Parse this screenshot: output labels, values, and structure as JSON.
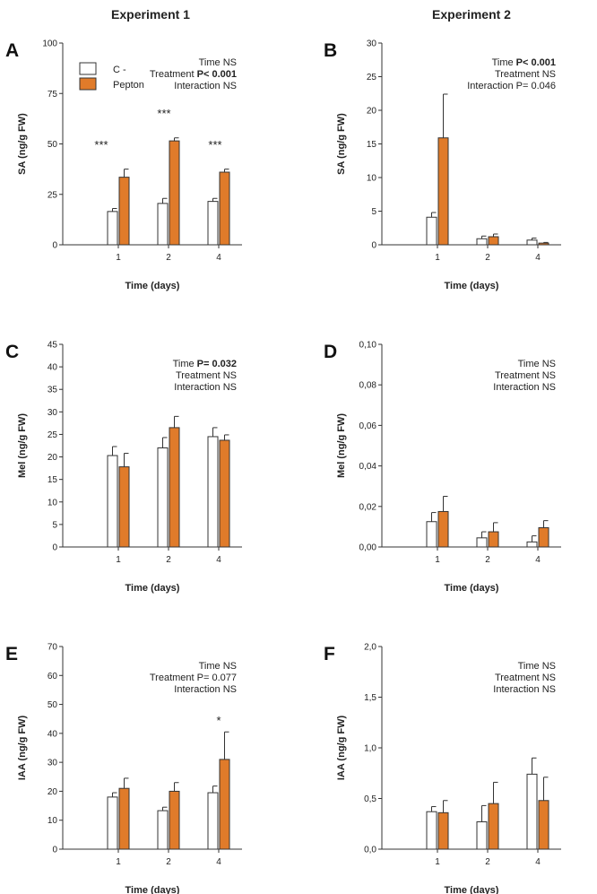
{
  "figure": {
    "column_titles": [
      "Experiment 1",
      "Experiment 2"
    ],
    "legend": [
      {
        "label": "C -",
        "color": "#ffffff"
      },
      {
        "label": "Pepton",
        "color": "#e07b2a"
      }
    ],
    "colors": {
      "control": "#ffffff",
      "pepton": "#e07b2a",
      "stroke": "#333333"
    }
  },
  "chart_data": [
    {
      "panel": "A",
      "type": "bar",
      "experiment": "Experiment 1",
      "title": "",
      "xlabel": "Time (days)",
      "ylabel": "SA (ng/g FW)",
      "categories": [
        "1",
        "2",
        "4"
      ],
      "ylim": [
        0,
        100
      ],
      "yticks": [
        "0",
        "25",
        "50",
        "75",
        "100"
      ],
      "series": [
        {
          "name": "C -",
          "values": [
            16.5,
            20.5,
            21.5
          ],
          "errors": [
            1.5,
            2.5,
            1.5
          ]
        },
        {
          "name": "Pepton",
          "values": [
            33.5,
            51.5,
            36
          ],
          "errors": [
            4,
            1.5,
            1.5
          ]
        }
      ],
      "stats": [
        {
          "pre": "Time ",
          "val": "NS"
        },
        {
          "pre": "Treatment ",
          "val": "P< 0.001",
          "bold": true
        },
        {
          "pre": "Interaction ",
          "val": "NS"
        }
      ],
      "annotations": [
        {
          "category": "1",
          "text": "***"
        },
        {
          "category": "2",
          "text": "***"
        },
        {
          "category": "4",
          "text": "***"
        }
      ]
    },
    {
      "panel": "B",
      "type": "bar",
      "experiment": "Experiment 2",
      "title": "",
      "xlabel": "Time (days)",
      "ylabel": "SA (ng/g FW)",
      "categories": [
        "1",
        "2",
        "4"
      ],
      "ylim": [
        0,
        30
      ],
      "yticks": [
        "0",
        "5",
        "10",
        "15",
        "20",
        "25",
        "30"
      ],
      "series": [
        {
          "name": "C -",
          "values": [
            4.1,
            0.9,
            0.7
          ],
          "errors": [
            0.7,
            0.4,
            0.3
          ]
        },
        {
          "name": "Pepton",
          "values": [
            15.9,
            1.2,
            0.25
          ],
          "errors": [
            6.5,
            0.4,
            0.1
          ]
        }
      ],
      "stats": [
        {
          "pre": "Time ",
          "val": "P< 0.001",
          "bold": true
        },
        {
          "pre": "Treatment ",
          "val": "NS"
        },
        {
          "pre": "Interaction ",
          "val": "P= 0.046"
        }
      ],
      "annotations": []
    },
    {
      "panel": "C",
      "type": "bar",
      "experiment": "Experiment 1",
      "title": "",
      "xlabel": "Time (days)",
      "ylabel": "Mel (ng/g FW)",
      "categories": [
        "1",
        "2",
        "4"
      ],
      "ylim": [
        0,
        45
      ],
      "yticks": [
        "0",
        "5",
        "10",
        "15",
        "20",
        "25",
        "30",
        "35",
        "40",
        "45"
      ],
      "series": [
        {
          "name": "C -",
          "values": [
            20.3,
            22,
            24.5
          ],
          "errors": [
            2,
            2.3,
            2
          ]
        },
        {
          "name": "Pepton",
          "values": [
            17.8,
            26.5,
            23.7
          ],
          "errors": [
            3,
            2.5,
            1.2
          ]
        }
      ],
      "stats": [
        {
          "pre": "Time ",
          "val": "P= 0.032",
          "bold": true
        },
        {
          "pre": "Treatment ",
          "val": "NS"
        },
        {
          "pre": "Interaction ",
          "val": "NS"
        }
      ],
      "annotations": []
    },
    {
      "panel": "D",
      "type": "bar",
      "experiment": "Experiment 2",
      "title": "",
      "xlabel": "Time (days)",
      "ylabel": "Mel (ng/g FW)",
      "categories": [
        "1",
        "2",
        "4"
      ],
      "ylim": [
        0,
        0.1
      ],
      "yticks": [
        "0,00",
        "0,02",
        "0,04",
        "0,06",
        "0,08",
        "0,10"
      ],
      "series": [
        {
          "name": "C -",
          "values": [
            0.0125,
            0.0045,
            0.0025
          ],
          "errors": [
            0.0045,
            0.003,
            0.003
          ]
        },
        {
          "name": "Pepton",
          "values": [
            0.0175,
            0.0075,
            0.0095
          ],
          "errors": [
            0.0075,
            0.0045,
            0.0035
          ]
        }
      ],
      "stats": [
        {
          "pre": "Time ",
          "val": "NS"
        },
        {
          "pre": "Treatment ",
          "val": "NS"
        },
        {
          "pre": "Interaction ",
          "val": "NS"
        }
      ],
      "annotations": []
    },
    {
      "panel": "E",
      "type": "bar",
      "experiment": "Experiment 1",
      "title": "",
      "xlabel": "Time (days)",
      "ylabel": "IAA (ng/g FW)",
      "categories": [
        "1",
        "2",
        "4"
      ],
      "ylim": [
        0,
        70
      ],
      "yticks": [
        "0",
        "10",
        "20",
        "30",
        "40",
        "50",
        "60",
        "70"
      ],
      "series": [
        {
          "name": "C -",
          "values": [
            18,
            13.3,
            19.5
          ],
          "errors": [
            1.5,
            1.2,
            2.3
          ]
        },
        {
          "name": "Pepton",
          "values": [
            21,
            20,
            31
          ],
          "errors": [
            3.5,
            3,
            9.5
          ]
        }
      ],
      "stats": [
        {
          "pre": "Time ",
          "val": "NS"
        },
        {
          "pre": "Treatment ",
          "val": "P= 0.077"
        },
        {
          "pre": "Interaction ",
          "val": "NS"
        }
      ],
      "annotations": [
        {
          "category": "4",
          "text": "*"
        }
      ]
    },
    {
      "panel": "F",
      "type": "bar",
      "experiment": "Experiment 2",
      "title": "",
      "xlabel": "Time (days)",
      "ylabel": "IAA (ng/g FW)",
      "categories": [
        "1",
        "2",
        "4"
      ],
      "ylim": [
        0,
        2.0
      ],
      "yticks": [
        "0,0",
        "0,5",
        "1,0",
        "1,5",
        "2,0"
      ],
      "series": [
        {
          "name": "C -",
          "values": [
            0.37,
            0.27,
            0.74
          ],
          "errors": [
            0.05,
            0.16,
            0.16
          ]
        },
        {
          "name": "Pepton",
          "values": [
            0.36,
            0.45,
            0.48
          ],
          "errors": [
            0.12,
            0.21,
            0.23
          ]
        }
      ],
      "stats": [
        {
          "pre": "Time ",
          "val": "NS"
        },
        {
          "pre": "Treatment ",
          "val": "NS"
        },
        {
          "pre": "Interaction ",
          "val": "NS"
        }
      ],
      "annotations": []
    }
  ]
}
